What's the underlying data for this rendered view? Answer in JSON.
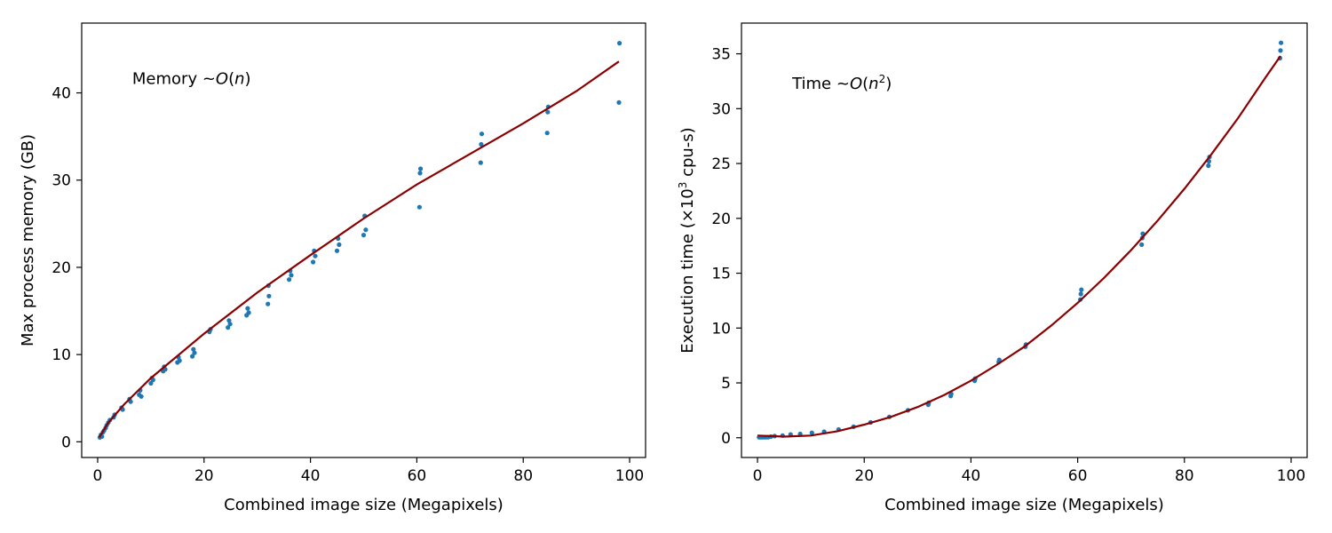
{
  "chart_data": [
    {
      "type": "scatter",
      "xlabel": "Combined image size (Megapixels)",
      "ylabel": "Max process memory (GB)",
      "xlim": [
        -3,
        103
      ],
      "ylim": [
        -1.8,
        48
      ],
      "xticks": [
        0,
        20,
        40,
        60,
        80,
        100
      ],
      "xtick_labels": [
        "0",
        "20",
        "40",
        "60",
        "80",
        "100"
      ],
      "yticks": [
        0,
        10,
        20,
        30,
        40
      ],
      "ytick_labels": [
        "0",
        "10",
        "20",
        "30",
        "40"
      ],
      "annotation": {
        "prefix": "Memory ~",
        "math_a": "O",
        "math_b": "(",
        "math_c": "n",
        "math_d": ")",
        "x": 6.5,
        "y": 41
      },
      "point_color": "#1f77b4",
      "fit_color": "#8b0000",
      "fit": {
        "x": [
          0.3,
          1,
          2,
          5,
          10,
          20,
          30,
          40,
          50,
          60,
          70,
          80,
          90,
          98
        ],
        "y": [
          0.5,
          1.2,
          2.2,
          4.3,
          7.3,
          12.4,
          17.1,
          21.4,
          25.6,
          29.5,
          33.0,
          36.5,
          40.2,
          43.6
        ]
      },
      "points": {
        "x": [
          0.4,
          0.6,
          0.8,
          1.0,
          1.2,
          1.5,
          1.7,
          2.0,
          2.3,
          3.0,
          3.2,
          4.5,
          4.7,
          6.0,
          6.2,
          7.8,
          8.0,
          8.2,
          10.0,
          10.2,
          10.4,
          12.3,
          12.5,
          12.7,
          15.0,
          15.2,
          15.4,
          17.8,
          18.0,
          18.2,
          21.0,
          21.2,
          24.5,
          24.7,
          24.9,
          28.0,
          28.2,
          28.4,
          32.0,
          32.1,
          32.2,
          36.0,
          36.2,
          36.4,
          40.5,
          40.7,
          40.9,
          45.0,
          45.2,
          45.4,
          50.0,
          50.2,
          50.4,
          60.5,
          60.6,
          60.7,
          72.0,
          72.1,
          72.2,
          84.5,
          84.6,
          84.7,
          98.0,
          98.1
        ],
        "y": [
          0.5,
          0.8,
          0.6,
          1.1,
          1.3,
          1.6,
          1.9,
          2.2,
          2.5,
          2.8,
          3.1,
          3.9,
          3.7,
          4.9,
          4.6,
          5.4,
          5.9,
          5.2,
          6.7,
          7.3,
          7.1,
          8.1,
          8.6,
          8.3,
          9.1,
          9.7,
          9.3,
          9.8,
          10.6,
          10.2,
          12.6,
          12.9,
          13.1,
          13.9,
          13.5,
          14.5,
          15.3,
          14.8,
          15.8,
          17.9,
          16.7,
          18.6,
          19.6,
          19.1,
          20.6,
          21.9,
          21.3,
          21.9,
          23.3,
          22.6,
          23.7,
          25.9,
          24.3,
          26.9,
          30.8,
          31.3,
          32.0,
          34.1,
          35.3,
          35.4,
          37.8,
          38.4,
          38.9,
          45.7
        ]
      }
    },
    {
      "type": "scatter",
      "xlabel": "Combined image size (Megapixels)",
      "ylabel_prefix": "Execution time (×10",
      "ylabel_sup": "3",
      "ylabel_suffix": " cpu-s)",
      "xlim": [
        -3,
        103
      ],
      "ylim": [
        -1.8,
        37.8
      ],
      "xticks": [
        0,
        20,
        40,
        60,
        80,
        100
      ],
      "xtick_labels": [
        "0",
        "20",
        "40",
        "60",
        "80",
        "100"
      ],
      "yticks": [
        0,
        5,
        10,
        15,
        20,
        25,
        30,
        35
      ],
      "ytick_labels": [
        "0",
        "5",
        "10",
        "15",
        "20",
        "25",
        "30",
        "35"
      ],
      "annotation": {
        "prefix": "Time ~",
        "math_a": "O",
        "math_b": "(",
        "math_c": "n",
        "math_sup": "2",
        "math_d": ")",
        "x": 6.5,
        "y": 31.8
      },
      "point_color": "#1f77b4",
      "fit_color": "#8b0000",
      "fit": {
        "x": [
          0,
          5,
          10,
          15,
          20,
          25,
          30,
          35,
          40,
          45,
          50,
          55,
          60,
          65,
          70,
          75,
          80,
          85,
          90,
          95,
          98
        ],
        "y": [
          0.2,
          0.1,
          0.2,
          0.6,
          1.2,
          1.9,
          2.8,
          3.9,
          5.2,
          6.7,
          8.3,
          10.2,
          12.3,
          14.6,
          17.1,
          19.8,
          22.7,
          25.8,
          29.1,
          32.7,
          34.8
        ]
      },
      "points": {
        "x": [
          0.3,
          0.5,
          0.8,
          1.0,
          1.3,
          1.6,
          2.0,
          2.5,
          3.2,
          4.7,
          6.2,
          8.0,
          10.2,
          12.5,
          15.2,
          18.0,
          21.2,
          24.7,
          28.2,
          32.0,
          32.1,
          36.2,
          36.3,
          40.7,
          40.8,
          45.2,
          45.3,
          50.2,
          50.3,
          60.5,
          60.6,
          60.7,
          72.0,
          72.1,
          72.2,
          84.5,
          84.6,
          84.7,
          97.9,
          98.0,
          98.1
        ],
        "y": [
          0.05,
          0.05,
          0.05,
          0.05,
          0.05,
          0.05,
          0.05,
          0.1,
          0.15,
          0.2,
          0.3,
          0.35,
          0.45,
          0.55,
          0.75,
          1.0,
          1.4,
          1.9,
          2.5,
          3.0,
          3.2,
          3.8,
          4.0,
          5.2,
          5.4,
          6.9,
          7.1,
          8.3,
          8.5,
          12.6,
          13.1,
          13.5,
          17.6,
          18.2,
          18.6,
          24.8,
          25.2,
          25.6,
          34.6,
          35.3,
          36.0
        ]
      }
    }
  ]
}
